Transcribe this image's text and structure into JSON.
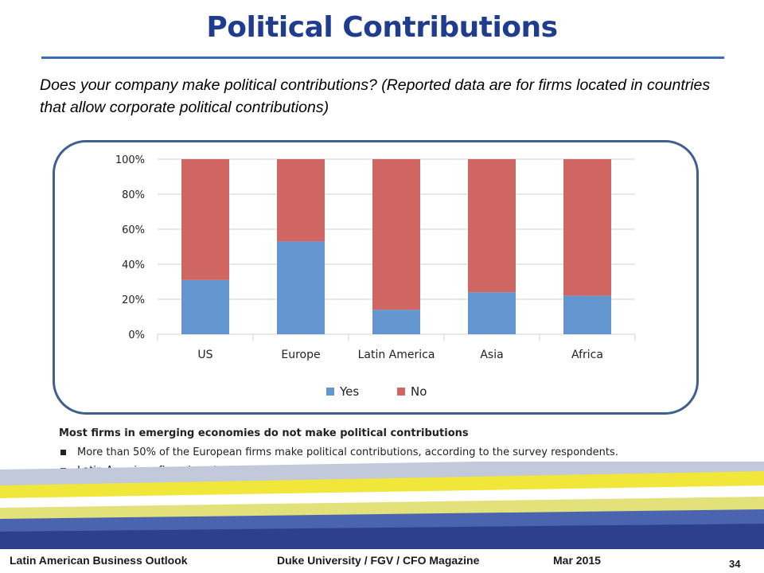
{
  "slide": {
    "title": "Political Contributions",
    "question": "Does your company make political contributions? (Reported data are for firms located in countries that allow corporate political contributions)"
  },
  "notes": {
    "heading": "Most firms in emerging economies do not make political contributions",
    "bullets": [
      "More than 50% of the European firms make political contributions, according to the survey respondents.",
      "Latin American firms has the lowest rate of making political contributions."
    ]
  },
  "footer": {
    "left": "Latin American Business Outlook",
    "center": "Duke University / FGV / CFO Magazine",
    "date": "Mar 2015",
    "page": "34"
  },
  "chart_data": {
    "type": "bar",
    "stacked": true,
    "categories": [
      "US",
      "Europe",
      "Latin America",
      "Asia",
      "Africa"
    ],
    "series": [
      {
        "name": "Yes",
        "color": "#6396cf",
        "values": [
          31,
          53,
          14,
          24,
          22
        ]
      },
      {
        "name": "No",
        "color": "#cf6661",
        "values": [
          69,
          47,
          86,
          76,
          78
        ]
      }
    ],
    "ylim": [
      0,
      100
    ],
    "yticks": [
      "0%",
      "20%",
      "40%",
      "60%",
      "80%",
      "100%"
    ],
    "ytick_values": [
      0,
      20,
      40,
      60,
      80,
      100
    ],
    "grid": true,
    "legend": "bottom"
  }
}
